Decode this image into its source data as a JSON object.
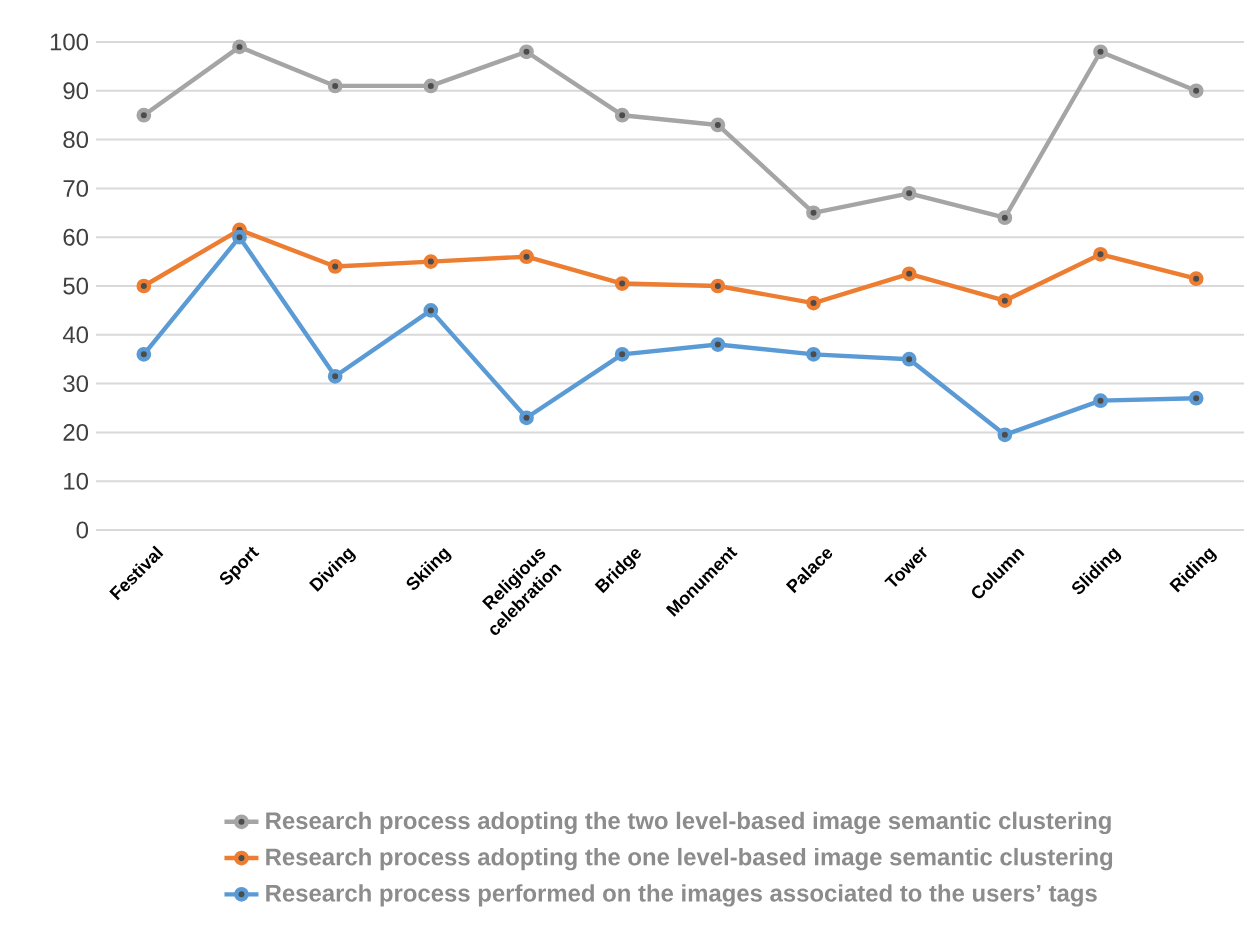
{
  "chart_data": {
    "type": "line",
    "categories": [
      "Festival",
      "Sport",
      "Diving",
      "Skiing",
      "Religious celebration",
      "Bridge",
      "Monument",
      "Palace",
      "Tower",
      "Column",
      "Sliding",
      "Riding"
    ],
    "series": [
      {
        "name": "Research process adopting the two level-based image semantic clustering",
        "color": "#a5a5a5",
        "values": [
          85,
          99,
          91,
          91,
          98,
          85,
          83,
          65,
          69,
          64,
          98,
          90
        ]
      },
      {
        "name": "Research process adopting the one level-based image semantic clustering",
        "color": "#ed7d31",
        "values": [
          50,
          61.5,
          54,
          55,
          56,
          50.5,
          50,
          46.5,
          52.5,
          47,
          56.5,
          51.5
        ]
      },
      {
        "name": "Research process performed on the images associated to the users’ tags",
        "color": "#5b9bd5",
        "values": [
          36,
          60,
          31.5,
          45,
          23,
          36,
          38,
          36,
          35,
          19.5,
          26.5,
          27
        ]
      }
    ],
    "ylim": [
      0,
      100
    ],
    "yticks": [
      0,
      10,
      20,
      30,
      40,
      50,
      60,
      70,
      80,
      90,
      100
    ],
    "grid": "y",
    "legend": "bottom",
    "marker": "circle",
    "line_style": "solid"
  }
}
